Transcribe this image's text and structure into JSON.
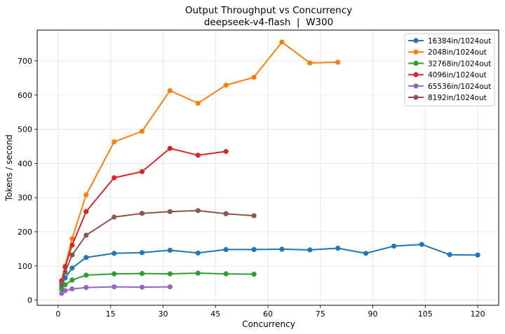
{
  "chart_data": {
    "type": "line",
    "title": "Output Throughput vs Concurrency",
    "subtitle": "deepseek-v4-flash  |  W300",
    "xlabel": "Concurrency",
    "ylabel": "Tokens / second",
    "xlim": [
      -6,
      126
    ],
    "ylim": [
      -15,
      790
    ],
    "xticks": [
      0,
      15,
      30,
      45,
      60,
      75,
      90,
      105,
      120
    ],
    "yticks": [
      0,
      100,
      200,
      300,
      400,
      500,
      600,
      700
    ],
    "grid": true,
    "legend_position": "top-right",
    "series": [
      {
        "name": "16384in/1024out",
        "color": "#1f77b4",
        "x": [
          1,
          2,
          4,
          8,
          16,
          24,
          32,
          40,
          48,
          56,
          64,
          72,
          80,
          88,
          96,
          104,
          112,
          120
        ],
        "y": [
          40,
          65,
          94,
          125,
          137,
          139,
          146,
          138,
          148,
          148,
          149,
          147,
          152,
          137,
          158,
          163,
          133,
          132
        ]
      },
      {
        "name": "2048in/1024out",
        "color": "#ff7f0e",
        "x": [
          1,
          2,
          4,
          8,
          16,
          24,
          32,
          40,
          48,
          56,
          64,
          72,
          80
        ],
        "y": [
          55,
          100,
          180,
          308,
          463,
          494,
          613,
          576,
          629,
          652,
          755,
          694,
          696
        ]
      },
      {
        "name": "32768in/1024out",
        "color": "#2ca02c",
        "x": [
          1,
          2,
          4,
          8,
          16,
          24,
          32,
          40,
          48,
          56
        ],
        "y": [
          32,
          45,
          59,
          73,
          77,
          78,
          77,
          79,
          77,
          76
        ]
      },
      {
        "name": "4096in/1024out",
        "color": "#d62728",
        "x": [
          1,
          2,
          4,
          8,
          16,
          24,
          32,
          40,
          48
        ],
        "y": [
          57,
          97,
          161,
          259,
          358,
          376,
          444,
          424,
          435
        ]
      },
      {
        "name": "65536in/1024out",
        "color": "#9467bd",
        "x": [
          1,
          2,
          4,
          8,
          16,
          24,
          32
        ],
        "y": [
          20,
          28,
          33,
          37,
          39,
          38,
          39
        ]
      },
      {
        "name": "8192in/1024out",
        "color": "#8c564b",
        "x": [
          1,
          2,
          4,
          8,
          16,
          24,
          32,
          40,
          48,
          56
        ],
        "y": [
          48,
          82,
          132,
          190,
          243,
          254,
          259,
          262,
          253,
          247
        ]
      }
    ]
  }
}
